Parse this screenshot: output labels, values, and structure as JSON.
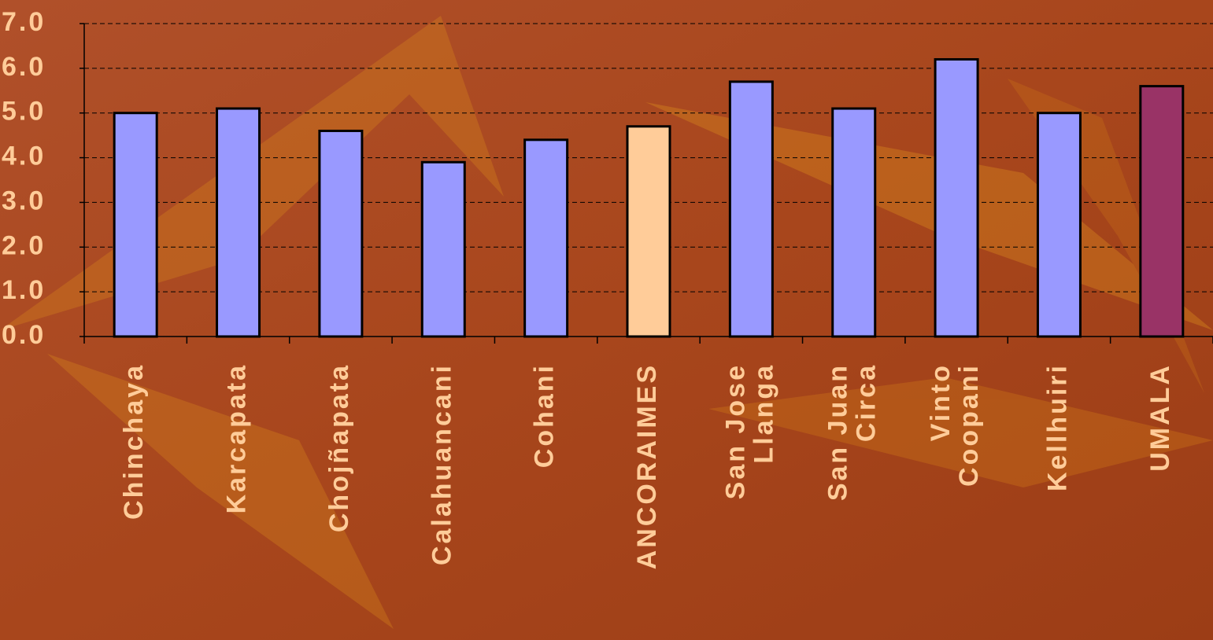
{
  "chart_data": {
    "type": "bar",
    "categories": [
      "Chinchaya",
      "Karcapata",
      "Chojñapata",
      "Calahuancani",
      "Cohani",
      "ANCORAIMES",
      "San Jose Llanga",
      "San Juan Circa",
      "Vinto Coopani",
      "Kellhuiri",
      "UMALA"
    ],
    "values": [
      5.0,
      5.1,
      4.6,
      3.9,
      4.4,
      4.7,
      5.7,
      5.1,
      6.2,
      5.0,
      5.6
    ],
    "colors": [
      "#9999ff",
      "#9999ff",
      "#9999ff",
      "#9999ff",
      "#9999ff",
      "#ffcc99",
      "#9999ff",
      "#9999ff",
      "#9999ff",
      "#9999ff",
      "#993366"
    ],
    "ylim": [
      0,
      7
    ],
    "yticks": [
      {
        "value": 0,
        "label": "0.0"
      },
      {
        "value": 1,
        "label": "1.0"
      },
      {
        "value": 2,
        "label": "2.0"
      },
      {
        "value": 3,
        "label": "3.0"
      },
      {
        "value": 4,
        "label": "4.0"
      },
      {
        "value": 5,
        "label": "5.0"
      },
      {
        "value": 6,
        "label": "6.0"
      },
      {
        "value": 7,
        "label": "7.0"
      }
    ],
    "grid": true
  }
}
